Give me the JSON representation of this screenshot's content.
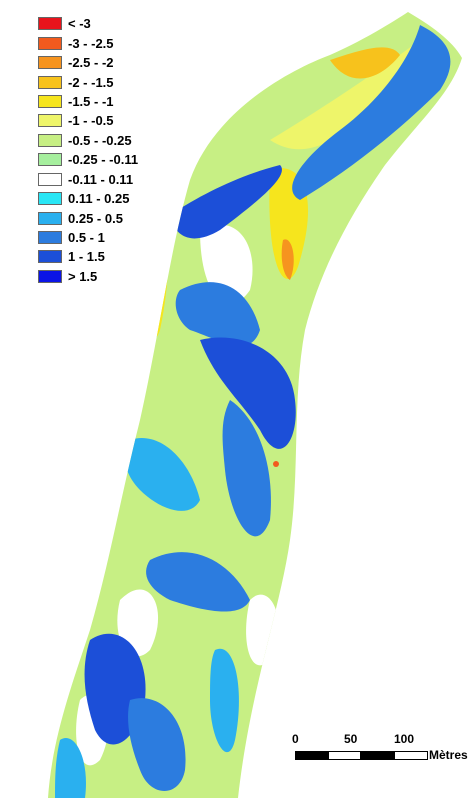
{
  "legend": {
    "title": "",
    "items": [
      {
        "label": "< -3",
        "color": "#e8141c"
      },
      {
        "label": "-3 - -2.5",
        "color": "#f25a1e"
      },
      {
        "label": "-2.5 - -2",
        "color": "#f6941f"
      },
      {
        "label": "-2 - -1.5",
        "color": "#f7c21c"
      },
      {
        "label": "-1.5 - -1",
        "color": "#f6e51d"
      },
      {
        "label": "-1 - -0.5",
        "color": "#eef56a"
      },
      {
        "label": "-0.5 - -0.25",
        "color": "#c7ef84"
      },
      {
        "label": "-0.25 - -0.11",
        "color": "#a6ef9e"
      },
      {
        "label": "-0.11 - 0.11",
        "color": "#ffffff"
      },
      {
        "label": "0.11 - 0.25",
        "color": "#29e6f5"
      },
      {
        "label": "0.25 - 0.5",
        "color": "#2ab0ef"
      },
      {
        "label": "0.5 - 1",
        "color": "#2c7cdf"
      },
      {
        "label": "1 - 1.5",
        "color": "#1c4fd8"
      },
      {
        "label": "> 1.5",
        "color": "#0b14e6"
      }
    ]
  },
  "scale_bar": {
    "ticks": [
      "0",
      "50",
      "100"
    ],
    "unit": "Mètres"
  }
}
